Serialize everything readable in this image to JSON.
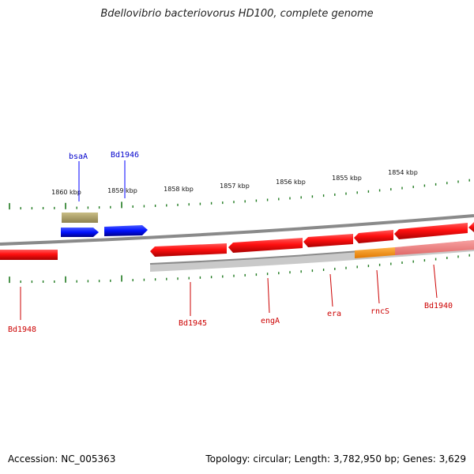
{
  "title": "Bdellovibrio bacteriovorus HD100, complete genome",
  "footer": {
    "accession": "Accession: NC_005363",
    "summary": "Topology: circular; Length: 3,782,950 bp; Genes: 3,629"
  },
  "scale_labels": [
    "1860 kbp",
    "1859 kbp",
    "1858 kbp",
    "1857 kbp",
    "1856 kbp",
    "1855 kbp",
    "1854 kbp"
  ],
  "genes_top": [
    {
      "name": "bsaA",
      "color": "#0000ff"
    },
    {
      "name": "Bd1946",
      "color": "#0000ff"
    }
  ],
  "genes_bottom": [
    {
      "name": "Bd1948",
      "color": "#cc0000"
    },
    {
      "name": "Bd1945",
      "color": "#cc0000"
    },
    {
      "name": "engA",
      "color": "#cc0000"
    },
    {
      "name": "era",
      "color": "#cc0000"
    },
    {
      "name": "rncS",
      "color": "#cc0000"
    },
    {
      "name": "Bd1940",
      "color": "#cc0000"
    }
  ],
  "colors": {
    "forward_gene": "#0a1ee6",
    "reverse_gene": "#e80000",
    "rna_feature": "#a89a60",
    "highlight": "#ff8c00",
    "tick": "#1f7a1f",
    "backbone": "#8c8c8c"
  }
}
